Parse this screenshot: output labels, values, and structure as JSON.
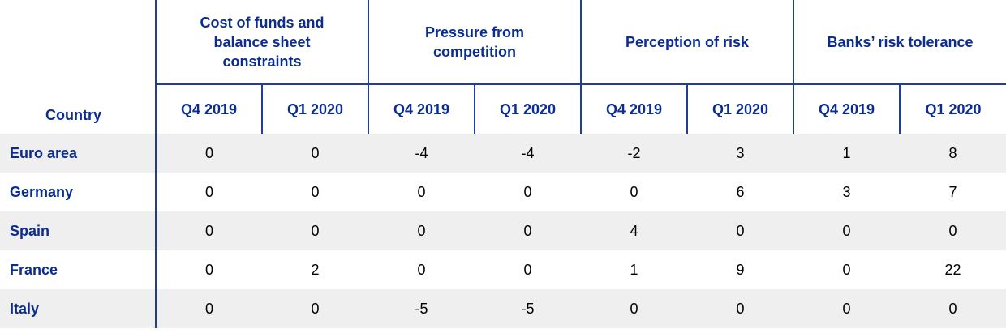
{
  "header": {
    "country": "Country",
    "groups": [
      {
        "label": "Cost of funds and balance sheet constraints",
        "quarters": [
          "Q4 2019",
          "Q1 2020"
        ]
      },
      {
        "label": "Pressure from competition",
        "quarters": [
          "Q4 2019",
          "Q1 2020"
        ]
      },
      {
        "label": "Perception of risk",
        "quarters": [
          "Q4 2019",
          "Q1 2020"
        ]
      },
      {
        "label": "Banks’ risk tolerance",
        "quarters": [
          "Q4 2019",
          "Q1 2020"
        ]
      }
    ]
  },
  "table": {
    "rows": [
      {
        "country": "Euro area",
        "values": [
          0,
          0,
          -4,
          -4,
          -2,
          3,
          1,
          8
        ]
      },
      {
        "country": "Germany",
        "values": [
          0,
          0,
          0,
          0,
          0,
          6,
          3,
          7
        ]
      },
      {
        "country": "Spain",
        "values": [
          0,
          0,
          0,
          0,
          4,
          0,
          0,
          0
        ]
      },
      {
        "country": "France",
        "values": [
          0,
          2,
          0,
          0,
          1,
          9,
          0,
          22
        ]
      },
      {
        "country": "Italy",
        "values": [
          0,
          0,
          -5,
          -5,
          0,
          0,
          0,
          0
        ]
      }
    ]
  }
}
